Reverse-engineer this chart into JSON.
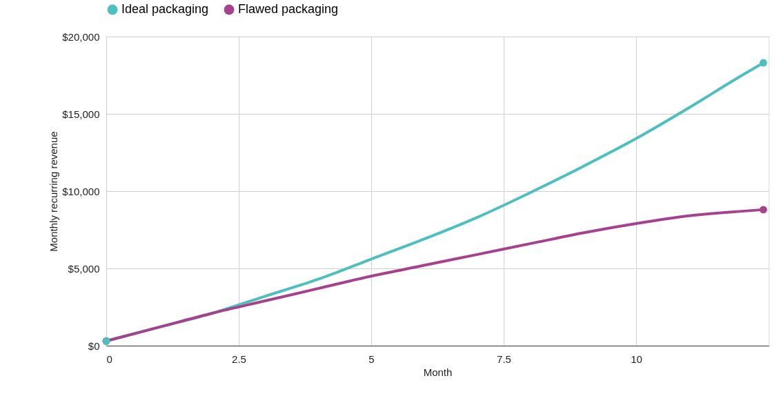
{
  "chart_data": {
    "type": "line",
    "xlabel": "Month",
    "ylabel": "Monthly recurring revenue",
    "x": [
      0,
      1,
      2,
      3,
      4,
      5,
      6,
      7,
      8,
      9,
      10,
      11,
      12,
      12.4
    ],
    "series": [
      {
        "name": "Ideal packaging",
        "color": "#4dbfbf",
        "values": [
          300,
          1200,
          2100,
          3200,
          4300,
          5600,
          6900,
          8300,
          9900,
          11600,
          13400,
          15400,
          17500,
          18300
        ]
      },
      {
        "name": "Flawed packaging",
        "color": "#a6418f",
        "values": [
          300,
          1200,
          2100,
          2900,
          3700,
          4500,
          5200,
          5900,
          6600,
          7300,
          7900,
          8400,
          8700,
          8800
        ]
      }
    ],
    "xlim": [
      0,
      12.5
    ],
    "xticks": [
      0,
      2.5,
      5,
      7.5,
      10
    ],
    "ylim": [
      0,
      20000
    ],
    "yticks": [
      {
        "value": 0,
        "label": "$0"
      },
      {
        "value": 5000,
        "label": "$5,000"
      },
      {
        "value": 10000,
        "label": "$10,000"
      },
      {
        "value": 15000,
        "label": "$15,000"
      },
      {
        "value": 20000,
        "label": "$20,000"
      }
    ],
    "grid": true,
    "legend": "top left",
    "line_style": "solid"
  }
}
